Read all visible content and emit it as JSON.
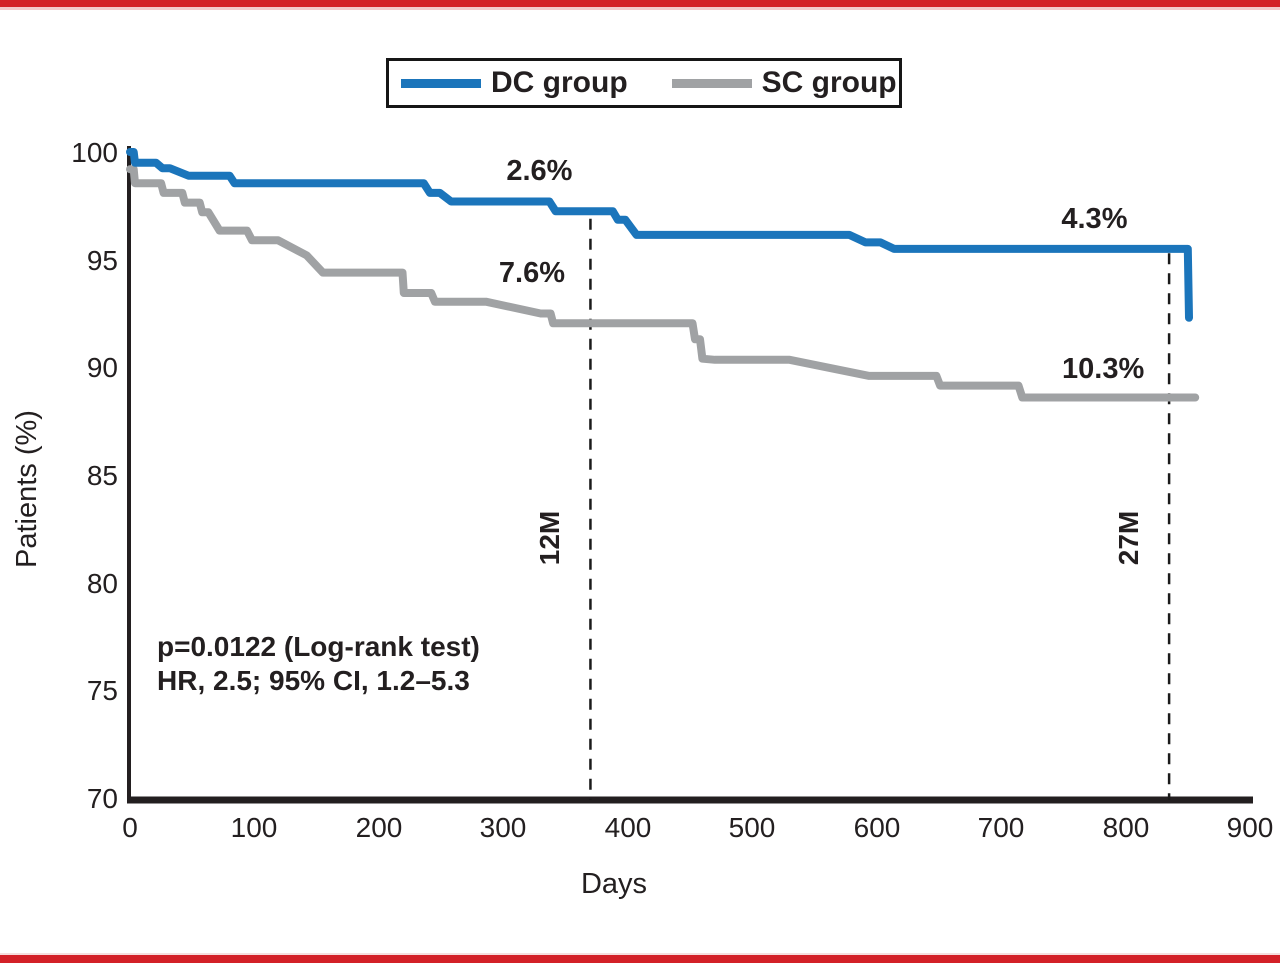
{
  "page": {
    "accent_color": "#d32027",
    "background": "#ffffff"
  },
  "chart_data": {
    "type": "line",
    "subtype": "kaplan-meier-step",
    "title": "",
    "xlabel": "Days",
    "ylabel": "Patients (%)",
    "xlim": [
      0,
      900
    ],
    "ylim": [
      70,
      100
    ],
    "x_ticks": [
      "0",
      "100",
      "200",
      "300",
      "400",
      "500",
      "600",
      "700",
      "800",
      "900"
    ],
    "y_ticks": [
      "100",
      "95",
      "90",
      "85",
      "80",
      "75",
      "70"
    ],
    "grid": false,
    "legend": {
      "position": "top-center"
    },
    "series": [
      {
        "name": "DC group",
        "color": "#1b75bb",
        "points": [
          [
            0,
            100
          ],
          [
            3,
            100
          ],
          [
            4,
            99.5
          ],
          [
            21,
            99.5
          ],
          [
            26,
            99.25
          ],
          [
            32,
            99.25
          ],
          [
            47,
            98.9
          ],
          [
            80,
            98.9
          ],
          [
            84,
            98.55
          ],
          [
            236,
            98.55
          ],
          [
            241,
            98.1
          ],
          [
            249,
            98.1
          ],
          [
            258,
            97.7
          ],
          [
            337,
            97.7
          ],
          [
            342,
            97.25
          ],
          [
            388,
            97.25
          ],
          [
            392,
            96.85
          ],
          [
            398,
            96.85
          ],
          [
            407,
            96.15
          ],
          [
            578,
            96.15
          ],
          [
            591,
            95.8
          ],
          [
            603,
            95.8
          ],
          [
            614,
            95.5
          ],
          [
            850,
            95.5
          ],
          [
            851,
            92.3
          ]
        ]
      },
      {
        "name": "SC group",
        "color": "#a0a2a4",
        "points": [
          [
            0,
            99.2
          ],
          [
            3,
            99.2
          ],
          [
            4,
            98.55
          ],
          [
            25,
            98.55
          ],
          [
            27,
            98.1
          ],
          [
            42,
            98.1
          ],
          [
            44,
            97.65
          ],
          [
            56,
            97.65
          ],
          [
            58,
            97.2
          ],
          [
            63,
            97.2
          ],
          [
            72,
            96.35
          ],
          [
            94,
            96.35
          ],
          [
            98,
            95.9
          ],
          [
            119,
            95.9
          ],
          [
            142,
            95.2
          ],
          [
            155,
            94.4
          ],
          [
            219,
            94.4
          ],
          [
            220,
            93.45
          ],
          [
            242,
            93.45
          ],
          [
            245,
            93.05
          ],
          [
            286,
            93.05
          ],
          [
            330,
            92.5
          ],
          [
            338,
            92.5
          ],
          [
            340,
            92.05
          ],
          [
            452,
            92.05
          ],
          [
            454,
            91.3
          ],
          [
            458,
            91.3
          ],
          [
            460,
            90.4
          ],
          [
            470,
            90.35
          ],
          [
            530,
            90.35
          ],
          [
            594,
            89.6
          ],
          [
            648,
            89.6
          ],
          [
            651,
            89.15
          ],
          [
            714,
            89.15
          ],
          [
            717,
            88.6
          ],
          [
            856,
            88.6
          ]
        ]
      }
    ],
    "reference_lines": [
      {
        "label": "12M",
        "x": 370,
        "y_top": 96.9
      },
      {
        "label": "27M",
        "x": 835,
        "y_top": 95.3
      }
    ],
    "annotations": [
      {
        "text": "2.6%",
        "x": 329,
        "y": 99.1,
        "series": "DC group"
      },
      {
        "text": "7.6%",
        "x": 323,
        "y": 94.4,
        "series": "SC group"
      },
      {
        "text": "4.3%",
        "x": 775,
        "y": 96.9,
        "series": "DC group"
      },
      {
        "text": "10.3%",
        "x": 782,
        "y": 89.9,
        "series": "SC group"
      }
    ],
    "stats_text": {
      "line1": "p=0.0122 (Log-rank test)",
      "line2": "HR, 2.5; 95% CI, 1.2–5.3"
    }
  }
}
